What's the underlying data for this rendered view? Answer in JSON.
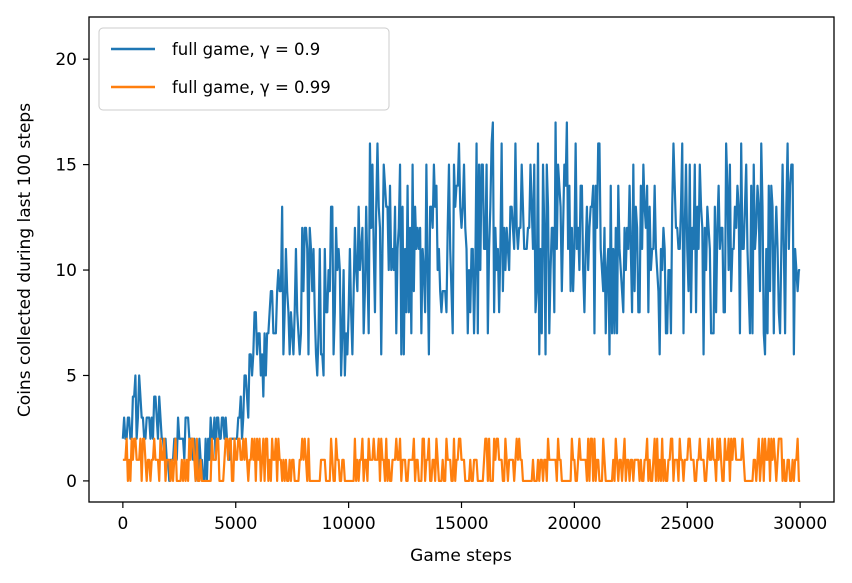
{
  "chart_data": {
    "type": "line",
    "xlabel": "Game steps",
    "ylabel": "Coins collected during last 100 steps",
    "xlim": [
      -1500,
      31500
    ],
    "ylim": [
      -1,
      22
    ],
    "xticks": [
      0,
      5000,
      10000,
      15000,
      20000,
      25000,
      30000
    ],
    "yticks": [
      0,
      5,
      10,
      15,
      20
    ],
    "legend_position": "top-left",
    "grid": false,
    "colors": [
      "#1f77b4",
      "#ff7f0e"
    ],
    "series": [
      {
        "name": "full game, γ = 0.9",
        "color": "#1f77b4",
        "x": [
          0,
          500,
          1000,
          1500,
          2000,
          2500,
          3000,
          3500,
          4000,
          4500,
          5000,
          5500,
          6000,
          6500,
          7000,
          7500,
          8000,
          8500,
          9000,
          9500,
          10000,
          10500,
          11000,
          11500,
          12000,
          12500,
          13000,
          13500,
          14000,
          14500,
          15000,
          15500,
          16000,
          16500,
          17000,
          17500,
          18000,
          18500,
          19000,
          19500,
          20000,
          20500,
          21000,
          21500,
          22000,
          22500,
          23000,
          23500,
          24000,
          24500,
          25000,
          25500,
          26000,
          26500,
          27000,
          27500,
          28000,
          28500,
          29000,
          29500,
          30000
        ],
        "y": [
          2,
          4,
          2,
          3,
          1,
          2,
          2,
          1,
          2,
          2,
          2,
          4,
          7,
          8,
          9,
          7,
          9,
          8,
          8,
          10,
          8,
          10,
          12,
          11,
          10,
          11,
          11,
          10,
          11,
          11,
          12,
          11,
          11,
          12,
          12,
          11,
          12,
          11,
          12,
          12,
          11,
          11,
          12,
          11,
          11,
          11,
          11,
          11,
          11,
          12,
          11,
          11,
          11,
          12,
          11,
          11,
          11,
          11,
          11,
          11,
          10
        ]
      },
      {
        "name": "full game, γ = 0.99",
        "color": "#ff7f0e",
        "x": [
          0,
          500,
          1000,
          1500,
          2000,
          2500,
          3000,
          3500,
          4000,
          4500,
          5000,
          5500,
          6000,
          6500,
          7000,
          7500,
          8000,
          8500,
          9000,
          9500,
          10000,
          10500,
          11000,
          11500,
          12000,
          12500,
          13000,
          13500,
          14000,
          14500,
          15000,
          15500,
          16000,
          16500,
          17000,
          17500,
          18000,
          18500,
          19000,
          19500,
          20000,
          20500,
          21000,
          21500,
          22000,
          22500,
          23000,
          23500,
          24000,
          24500,
          25000,
          25500,
          26000,
          26500,
          27000,
          27500,
          28000,
          28500,
          29000,
          29500,
          30000
        ],
        "y": [
          1,
          2,
          1,
          1,
          1,
          0,
          1,
          0,
          1,
          1,
          1,
          1,
          1,
          1,
          1,
          1,
          1,
          0,
          0,
          1,
          0,
          1,
          1,
          1,
          1,
          1,
          1,
          1,
          0,
          1,
          1,
          0,
          1,
          1,
          1,
          1,
          0,
          1,
          1,
          0,
          1,
          1,
          1,
          0,
          1,
          1,
          0,
          1,
          1,
          1,
          1,
          1,
          1,
          1,
          1,
          1,
          1,
          1,
          1,
          1,
          0
        ]
      }
    ]
  }
}
